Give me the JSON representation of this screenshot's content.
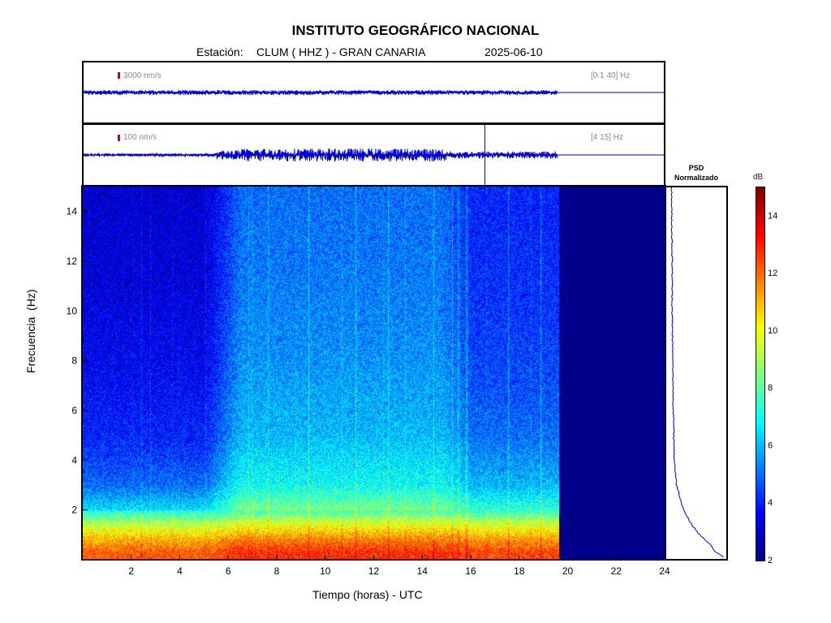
{
  "title": "INSTITUTO GEOGRÁFICO NACIONAL",
  "station_label": "Estación:",
  "station": "CLUM ( HHZ ) - GRAN CANARIA",
  "date": "2025-06-10",
  "trace1": {
    "scale": "3000 nm/s",
    "filter": "[0.1 40] Hz"
  },
  "trace2": {
    "scale": "100 nm/s",
    "filter": "[4 15] Hz"
  },
  "psd_title_line1": "PSD",
  "psd_title_line2": "Normalizado",
  "colorbar_unit": "dB",
  "colors": {
    "trace": "#0000d8",
    "no_data": "#00008b",
    "scale_bar": "#d00000"
  },
  "chart_data": {
    "type": "heatmap",
    "xlabel": "Tiempo (horas) - UTC",
    "ylabel": "Frecuencia  (Hz)",
    "xlim": [
      0,
      24
    ],
    "ylim": [
      0,
      15
    ],
    "x_ticks": [
      2,
      4,
      6,
      8,
      10,
      12,
      14,
      16,
      18,
      20,
      22,
      24
    ],
    "y_ticks": [
      2,
      4,
      6,
      8,
      10,
      12,
      14
    ],
    "data_end_hour": 19.6,
    "colorscale": "jet",
    "colorbar_range": [
      2,
      15
    ],
    "colorbar_ticks": [
      2,
      4,
      6,
      8,
      10,
      12,
      14
    ],
    "frequency_profile_db": [
      {
        "f": 0.3,
        "db": 12.5
      },
      {
        "f": 0.8,
        "db": 11.5
      },
      {
        "f": 1.3,
        "db": 10
      },
      {
        "f": 2,
        "db": 7.5
      },
      {
        "f": 3,
        "db": 6
      },
      {
        "f": 5,
        "db": 5
      },
      {
        "f": 8,
        "db": 4.5
      },
      {
        "f": 11,
        "db": 4.2
      },
      {
        "f": 15,
        "db": 4
      }
    ],
    "time_profile_db": [
      {
        "t": 0,
        "d": -1
      },
      {
        "t": 5,
        "d": -1
      },
      {
        "t": 6.5,
        "d": 1
      },
      {
        "t": 14.8,
        "d": 1
      },
      {
        "t": 16,
        "d": 0
      },
      {
        "t": 19.6,
        "d": 0
      }
    ],
    "psd_profile": [
      {
        "f": 0.1,
        "v": 1.0
      },
      {
        "f": 0.3,
        "v": 0.85
      },
      {
        "f": 0.6,
        "v": 0.75
      },
      {
        "f": 1.0,
        "v": 0.55
      },
      {
        "f": 1.5,
        "v": 0.38
      },
      {
        "f": 2.0,
        "v": 0.26
      },
      {
        "f": 3.0,
        "v": 0.13
      },
      {
        "f": 4.0,
        "v": 0.09
      },
      {
        "f": 6.0,
        "v": 0.07
      },
      {
        "f": 8.0,
        "v": 0.06
      },
      {
        "f": 10.0,
        "v": 0.05
      },
      {
        "f": 12.0,
        "v": 0.05
      },
      {
        "f": 14.0,
        "v": 0.04
      },
      {
        "f": 15.0,
        "v": 0.04
      }
    ]
  }
}
